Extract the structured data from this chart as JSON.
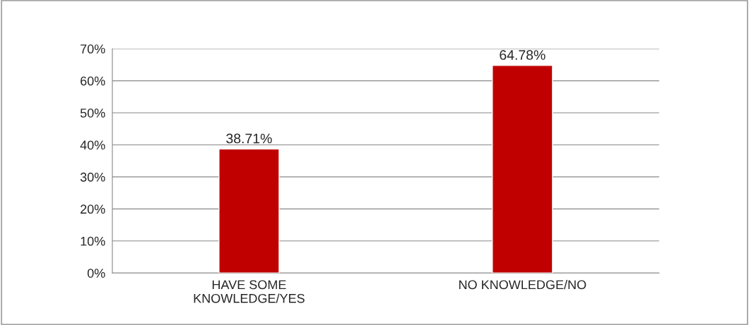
{
  "chart_data": {
    "type": "bar",
    "categories": [
      "HAVE SOME\nKNOWLEDGE/YES",
      "NO KNOWLEDGE/NO"
    ],
    "values": [
      38.71,
      64.78
    ],
    "color": "#c00000",
    "value_labels": [
      "38.71%",
      "64.78%"
    ],
    "ylim": [
      0,
      70
    ],
    "yticks": [
      {
        "value": 0,
        "label": "0%"
      },
      {
        "value": 10,
        "label": "10%"
      },
      {
        "value": 20,
        "label": "20%"
      },
      {
        "value": 30,
        "label": "30%"
      },
      {
        "value": 40,
        "label": "40%"
      },
      {
        "value": 50,
        "label": "50%"
      },
      {
        "value": 60,
        "label": "60%"
      },
      {
        "value": 70,
        "label": "70%"
      }
    ],
    "grid": "y"
  }
}
